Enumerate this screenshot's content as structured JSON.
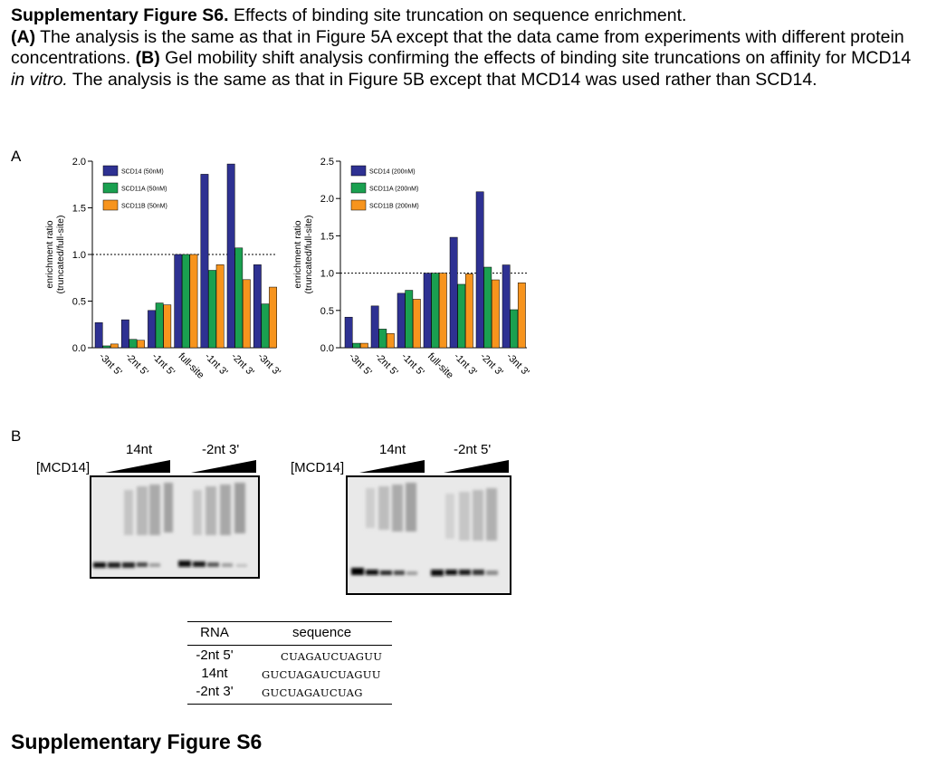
{
  "caption": {
    "title_bold": "Supplementary Figure S6.",
    "title_rest": " Effects of binding site truncation on sequence enrichment.",
    "a_label": "(A)",
    "a_text": " The analysis is the same as that in Figure 5A except that the data came from experiments with different protein concentrations. ",
    "b_label": "(B)",
    "b_text_1": " Gel mobility shift analysis confirming the effects of binding site truncations on affinity for MCD14 ",
    "b_text_italic": "in vitro.",
    "b_text_2": " The analysis is the same as that in Figure 5B except that MCD14 was used rather than SCD14."
  },
  "panel_a_label": "A",
  "panel_b_label": "B",
  "chart_data": [
    {
      "type": "bar",
      "categories": [
        "-3nt 5'",
        "-2nt 5'",
        "-1nt 5'",
        "full-site",
        "-1nt 3'",
        "-2nt 3'",
        "-3nt 3'"
      ],
      "series": [
        {
          "name": "SCD14 (50nM)",
          "color": "#2e3192",
          "values": [
            0.27,
            0.3,
            0.4,
            1.0,
            1.86,
            1.97,
            0.89
          ]
        },
        {
          "name": "SCD11A (50nM)",
          "color": "#1aa050",
          "values": [
            0.02,
            0.09,
            0.48,
            1.0,
            0.83,
            1.07,
            0.47
          ]
        },
        {
          "name": "SCD11B (50nM)",
          "color": "#f7941d",
          "values": [
            0.04,
            0.08,
            0.46,
            1.0,
            0.89,
            0.73,
            0.65
          ]
        }
      ],
      "ylabel_line1": "enrichment ratio",
      "ylabel_line2": "(truncated/full-site)",
      "ylim": [
        0,
        2.0
      ],
      "yticks": [
        "0.0",
        "0.5",
        "1.0",
        "1.5",
        "2.0"
      ],
      "reference_line": 1.0,
      "legend_position": "top-left"
    },
    {
      "type": "bar",
      "categories": [
        "-3nt 5'",
        "-2nt 5'",
        "-1nt 5'",
        "full-site",
        "-1nt 3'",
        "-2nt 3'",
        "-3nt 3'"
      ],
      "series": [
        {
          "name": "SCD14 (200nM)",
          "color": "#2e3192",
          "values": [
            0.41,
            0.56,
            0.73,
            1.0,
            1.48,
            2.09,
            1.11
          ]
        },
        {
          "name": "SCD11A (200nM)",
          "color": "#1aa050",
          "values": [
            0.06,
            0.25,
            0.77,
            1.0,
            0.85,
            1.08,
            0.51
          ]
        },
        {
          "name": "SCD11B (200nM)",
          "color": "#f7941d",
          "values": [
            0.06,
            0.19,
            0.65,
            1.0,
            0.99,
            0.91,
            0.87
          ]
        }
      ],
      "ylabel_line1": "enrichment ratio",
      "ylabel_line2": "(truncated/full-site)",
      "ylim": [
        0,
        2.5
      ],
      "yticks": [
        "0.0",
        "0.5",
        "1.0",
        "1.5",
        "2.0",
        "2.5"
      ],
      "reference_line": 1.0,
      "legend_position": "top-left"
    }
  ],
  "gel_left": {
    "protein_label": "[MCD14]",
    "group1": "14nt",
    "group2": "-2nt 3'"
  },
  "gel_right": {
    "protein_label": "[MCD14]",
    "group1": "14nt",
    "group2": "-2nt 5'"
  },
  "sequence_table": {
    "headers": {
      "rna": "RNA",
      "sequence": "sequence"
    },
    "rows": [
      {
        "rna": "-2nt 5'",
        "sequence": "CUAGAUCUAGUU"
      },
      {
        "rna": "14nt",
        "sequence": "GUCUAGAUCUAGUU"
      },
      {
        "rna": "-2nt 3'",
        "sequence": "GUCUAGAUCUAG"
      }
    ]
  },
  "footer_title": "Supplementary Figure S6"
}
